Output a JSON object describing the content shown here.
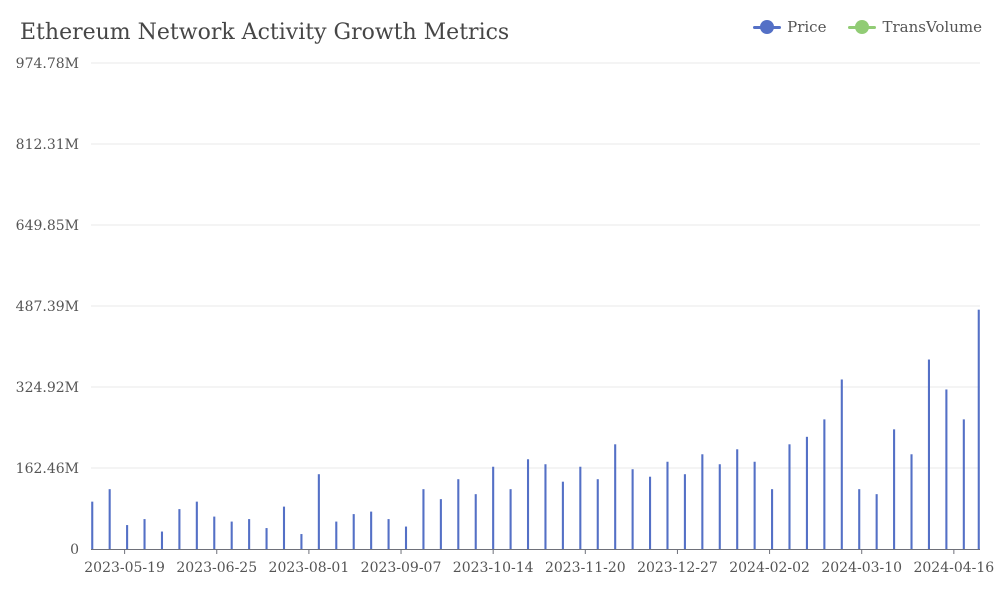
{
  "chart_data": {
    "type": "bar",
    "title": "Ethereum Network Activity Growth Metrics",
    "xlabel": "",
    "ylabel": "",
    "ylim": [
      0,
      974.78
    ],
    "y_ticks": [
      "0",
      "162.46M",
      "324.92M",
      "487.39M",
      "649.85M",
      "812.31M",
      "974.78M"
    ],
    "x_range": [
      "2023-05-06",
      "2024-04-26"
    ],
    "x_ticks": [
      "2023-05-19",
      "2023-06-25",
      "2023-08-01",
      "2023-09-07",
      "2023-10-14",
      "2023-11-20",
      "2023-12-27",
      "2024-02-02",
      "2024-03-10",
      "2024-04-16"
    ],
    "grid": true,
    "legend_position": "top-right",
    "colors": {
      "bars": "#5470c6",
      "Price": "#5470c6",
      "TransVolume": "#91cc75"
    },
    "series": [
      {
        "name": "Price",
        "x": [
          "2023-05-06",
          "2023-05-13",
          "2023-05-20",
          "2023-05-27",
          "2023-06-03",
          "2023-06-10",
          "2023-06-17",
          "2023-06-24",
          "2023-07-01",
          "2023-07-08",
          "2023-07-15",
          "2023-07-22",
          "2023-07-29",
          "2023-08-05",
          "2023-08-12",
          "2023-08-19",
          "2023-08-26",
          "2023-09-02",
          "2023-09-09",
          "2023-09-16",
          "2023-09-23",
          "2023-09-30",
          "2023-10-07",
          "2023-10-14",
          "2023-10-21",
          "2023-10-28",
          "2023-11-04",
          "2023-11-11",
          "2023-11-18",
          "2023-11-25",
          "2023-12-02",
          "2023-12-09",
          "2023-12-16",
          "2023-12-23",
          "2023-12-30",
          "2024-01-06",
          "2024-01-13",
          "2024-01-20",
          "2024-01-27",
          "2024-02-03",
          "2024-02-10",
          "2024-02-17",
          "2024-02-24",
          "2024-03-02",
          "2024-03-09",
          "2024-03-16",
          "2024-03-23",
          "2024-03-30",
          "2024-04-06",
          "2024-04-13",
          "2024-04-20",
          "2024-04-26"
        ],
        "values": [
          95,
          120,
          48,
          60,
          35,
          80,
          95,
          65,
          55,
          60,
          42,
          85,
          30,
          150,
          55,
          70,
          75,
          60,
          45,
          120,
          100,
          140,
          110,
          165,
          120,
          180,
          170,
          135,
          165,
          140,
          210,
          160,
          145,
          175,
          150,
          190,
          170,
          200,
          175,
          120,
          210,
          225,
          260,
          340,
          120,
          110,
          240,
          190,
          380,
          320,
          260,
          480
        ]
      },
      {
        "name": "TransVolume",
        "x": [],
        "values": []
      }
    ]
  }
}
